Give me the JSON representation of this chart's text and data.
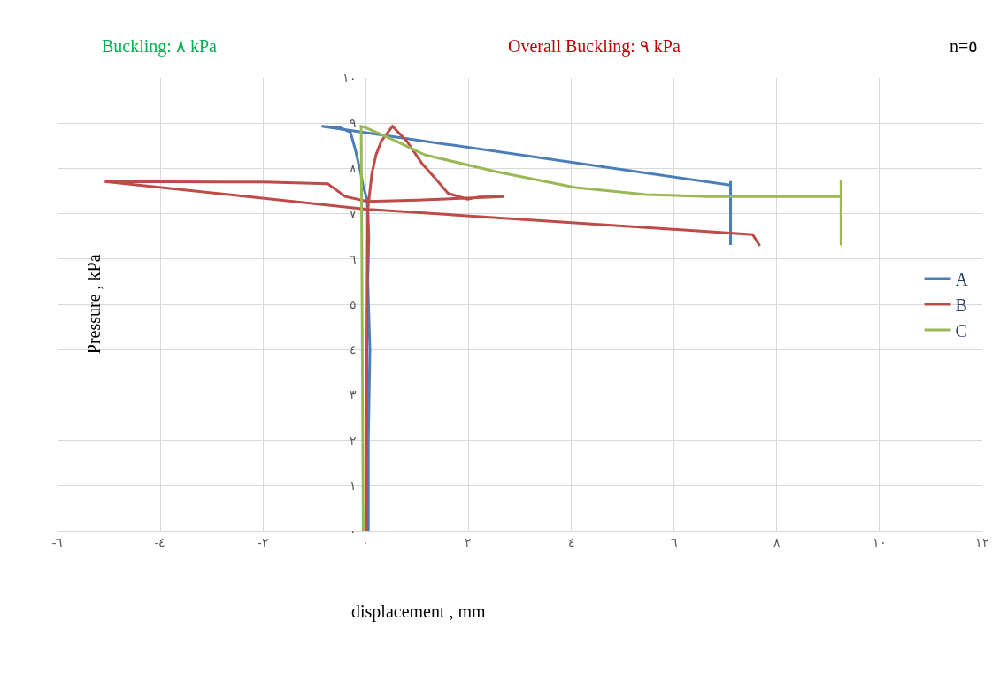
{
  "chart_data": {
    "type": "line",
    "annotations": [
      "Buckling: ٨ kPa",
      "Overall Buckling: ٩ kPa",
      "n=٥"
    ],
    "xlabel": "displacement , mm",
    "ylabel": "Pressure , kPa",
    "xlim": [
      -6,
      12
    ],
    "ylim": [
      0,
      10
    ],
    "xticks": [
      {
        "value": -6,
        "label": "-٦"
      },
      {
        "value": -4,
        "label": "-٤"
      },
      {
        "value": -2,
        "label": "-٢"
      },
      {
        "value": 0,
        "label": "٠"
      },
      {
        "value": 2,
        "label": "٢"
      },
      {
        "value": 4,
        "label": "٤"
      },
      {
        "value": 6,
        "label": "٦"
      },
      {
        "value": 8,
        "label": "٨"
      },
      {
        "value": 10,
        "label": "١٠"
      },
      {
        "value": 12,
        "label": "١٢"
      }
    ],
    "yticks": [
      {
        "value": 0,
        "label": "٠"
      },
      {
        "value": 1,
        "label": "١"
      },
      {
        "value": 2,
        "label": "٢"
      },
      {
        "value": 3,
        "label": "٣"
      },
      {
        "value": 4,
        "label": "٤"
      },
      {
        "value": 5,
        "label": "٥"
      },
      {
        "value": 6,
        "label": "٦"
      },
      {
        "value": 7,
        "label": "٧"
      },
      {
        "value": 8,
        "label": "٨"
      },
      {
        "value": 9,
        "label": "٩"
      },
      {
        "value": 10,
        "label": "١٠"
      }
    ],
    "grid": true,
    "legend": "right",
    "marker": "none",
    "line_style": "solid",
    "series": [
      {
        "name": "A",
        "color": "#4a7ebb",
        "x": [
          0.05,
          0.05,
          0.08,
          0.04,
          0.06,
          0.03,
          -0.05,
          -0.1,
          -0.2,
          -0.3,
          -0.5,
          -0.86,
          7.1,
          7.1,
          7.1
        ],
        "values": [
          0,
          2.0,
          4.0,
          5.5,
          6.5,
          7.3,
          7.6,
          7.9,
          8.4,
          8.8,
          8.9,
          8.93,
          7.63,
          6.31,
          7.72
        ]
      },
      {
        "name": "B",
        "color": "#be4b48",
        "x": [
          0.02,
          0.02,
          0.04,
          0.08,
          0.12,
          0.2,
          0.3,
          0.52,
          0.8,
          1.1,
          1.33,
          1.6,
          1.98,
          2.2,
          2.7,
          1.0,
          0.03,
          -0.4,
          -0.74,
          -2.0,
          -5.08,
          0.0,
          7.53,
          7.67
        ],
        "values": [
          0,
          4.0,
          7.1,
          7.5,
          7.9,
          8.3,
          8.6,
          8.93,
          8.6,
          8.1,
          7.81,
          7.45,
          7.32,
          7.37,
          7.38,
          7.3,
          7.27,
          7.38,
          7.66,
          7.7,
          7.71,
          7.1,
          6.54,
          6.29
        ]
      },
      {
        "name": "C",
        "color": "#98b954",
        "x": [
          -0.05,
          -0.09,
          0.0,
          0.5,
          1.15,
          2.53,
          4.08,
          5.46,
          6.67,
          9.25,
          9.25,
          9.25
        ],
        "values": [
          0,
          8.93,
          8.9,
          8.65,
          8.3,
          7.93,
          7.58,
          7.42,
          7.38,
          7.38,
          6.3,
          7.75
        ]
      }
    ]
  }
}
